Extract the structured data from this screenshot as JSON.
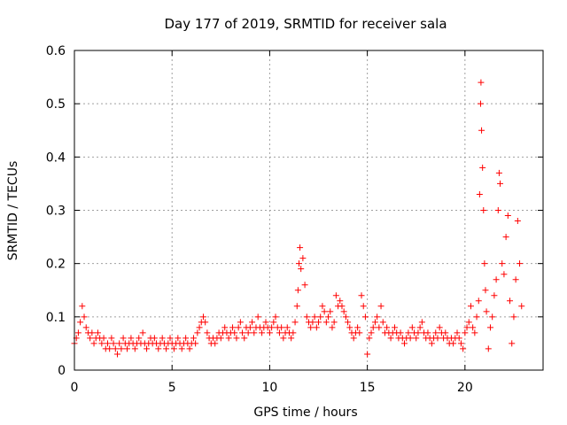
{
  "chart_data": {
    "type": "scatter",
    "title": "Day 177 of 2019, SRMTID for receiver sala",
    "xlabel": "GPS time / hours",
    "ylabel": "SRMTID / TECUs",
    "xlim": [
      0,
      24
    ],
    "ylim": [
      0,
      0.6
    ],
    "grid": true,
    "marker": "+",
    "marker_color": "#ff0000",
    "x_ticks": [
      0,
      5,
      10,
      15,
      20
    ],
    "x_tick_labels": [
      "0",
      "5",
      "10",
      "15",
      "20"
    ],
    "y_ticks": [
      0,
      0.1,
      0.2,
      0.3,
      0.4,
      0.5,
      0.6
    ],
    "y_tick_labels": [
      "0",
      "0.1",
      "0.2",
      "0.3",
      "0.4",
      "0.5",
      "0.6"
    ],
    "series": [
      {
        "name": "SRMTID",
        "points": [
          [
            0.0,
            0.05
          ],
          [
            0.1,
            0.06
          ],
          [
            0.2,
            0.07
          ],
          [
            0.3,
            0.09
          ],
          [
            0.4,
            0.12
          ],
          [
            0.5,
            0.1
          ],
          [
            0.6,
            0.08
          ],
          [
            0.7,
            0.07
          ],
          [
            0.8,
            0.06
          ],
          [
            0.9,
            0.07
          ],
          [
            1.0,
            0.05
          ],
          [
            1.1,
            0.06
          ],
          [
            1.2,
            0.07
          ],
          [
            1.3,
            0.06
          ],
          [
            1.4,
            0.05
          ],
          [
            1.5,
            0.06
          ],
          [
            1.6,
            0.04
          ],
          [
            1.7,
            0.05
          ],
          [
            1.8,
            0.04
          ],
          [
            1.9,
            0.06
          ],
          [
            2.0,
            0.05
          ],
          [
            2.1,
            0.04
          ],
          [
            2.2,
            0.03
          ],
          [
            2.3,
            0.05
          ],
          [
            2.4,
            0.04
          ],
          [
            2.5,
            0.06
          ],
          [
            2.6,
            0.05
          ],
          [
            2.7,
            0.04
          ],
          [
            2.8,
            0.05
          ],
          [
            2.9,
            0.06
          ],
          [
            3.0,
            0.05
          ],
          [
            3.1,
            0.04
          ],
          [
            3.2,
            0.05
          ],
          [
            3.3,
            0.06
          ],
          [
            3.4,
            0.05
          ],
          [
            3.5,
            0.07
          ],
          [
            3.6,
            0.05
          ],
          [
            3.7,
            0.04
          ],
          [
            3.8,
            0.05
          ],
          [
            3.9,
            0.06
          ],
          [
            4.0,
            0.05
          ],
          [
            4.1,
            0.06
          ],
          [
            4.2,
            0.05
          ],
          [
            4.3,
            0.04
          ],
          [
            4.4,
            0.05
          ],
          [
            4.5,
            0.06
          ],
          [
            4.6,
            0.05
          ],
          [
            4.7,
            0.04
          ],
          [
            4.8,
            0.05
          ],
          [
            4.9,
            0.06
          ],
          [
            5.0,
            0.05
          ],
          [
            5.1,
            0.04
          ],
          [
            5.2,
            0.05
          ],
          [
            5.3,
            0.06
          ],
          [
            5.4,
            0.05
          ],
          [
            5.5,
            0.04
          ],
          [
            5.6,
            0.05
          ],
          [
            5.7,
            0.06
          ],
          [
            5.8,
            0.05
          ],
          [
            5.9,
            0.04
          ],
          [
            6.0,
            0.05
          ],
          [
            6.1,
            0.06
          ],
          [
            6.2,
            0.05
          ],
          [
            6.3,
            0.07
          ],
          [
            6.4,
            0.08
          ],
          [
            6.5,
            0.09
          ],
          [
            6.6,
            0.1
          ],
          [
            6.7,
            0.09
          ],
          [
            6.8,
            0.07
          ],
          [
            6.9,
            0.06
          ],
          [
            7.0,
            0.05
          ],
          [
            7.1,
            0.06
          ],
          [
            7.2,
            0.05
          ],
          [
            7.3,
            0.06
          ],
          [
            7.4,
            0.07
          ],
          [
            7.5,
            0.06
          ],
          [
            7.6,
            0.07
          ],
          [
            7.7,
            0.08
          ],
          [
            7.8,
            0.07
          ],
          [
            7.9,
            0.06
          ],
          [
            8.0,
            0.07
          ],
          [
            8.1,
            0.08
          ],
          [
            8.2,
            0.07
          ],
          [
            8.3,
            0.06
          ],
          [
            8.4,
            0.08
          ],
          [
            8.5,
            0.09
          ],
          [
            8.6,
            0.07
          ],
          [
            8.7,
            0.06
          ],
          [
            8.8,
            0.08
          ],
          [
            8.9,
            0.07
          ],
          [
            9.0,
            0.08
          ],
          [
            9.1,
            0.09
          ],
          [
            9.2,
            0.07
          ],
          [
            9.3,
            0.08
          ],
          [
            9.4,
            0.1
          ],
          [
            9.5,
            0.08
          ],
          [
            9.6,
            0.07
          ],
          [
            9.7,
            0.08
          ],
          [
            9.8,
            0.09
          ],
          [
            9.9,
            0.08
          ],
          [
            10.0,
            0.07
          ],
          [
            10.1,
            0.08
          ],
          [
            10.2,
            0.09
          ],
          [
            10.3,
            0.1
          ],
          [
            10.4,
            0.08
          ],
          [
            10.5,
            0.07
          ],
          [
            10.6,
            0.08
          ],
          [
            10.7,
            0.06
          ],
          [
            10.8,
            0.07
          ],
          [
            10.9,
            0.08
          ],
          [
            11.0,
            0.07
          ],
          [
            11.1,
            0.06
          ],
          [
            11.2,
            0.07
          ],
          [
            11.3,
            0.09
          ],
          [
            11.4,
            0.12
          ],
          [
            11.45,
            0.15
          ],
          [
            11.5,
            0.2
          ],
          [
            11.55,
            0.23
          ],
          [
            11.6,
            0.19
          ],
          [
            11.7,
            0.21
          ],
          [
            11.8,
            0.16
          ],
          [
            11.9,
            0.1
          ],
          [
            12.0,
            0.09
          ],
          [
            12.1,
            0.08
          ],
          [
            12.2,
            0.09
          ],
          [
            12.3,
            0.1
          ],
          [
            12.4,
            0.08
          ],
          [
            12.5,
            0.09
          ],
          [
            12.6,
            0.1
          ],
          [
            12.7,
            0.12
          ],
          [
            12.8,
            0.11
          ],
          [
            12.9,
            0.09
          ],
          [
            13.0,
            0.1
          ],
          [
            13.1,
            0.11
          ],
          [
            13.2,
            0.08
          ],
          [
            13.3,
            0.09
          ],
          [
            13.4,
            0.14
          ],
          [
            13.5,
            0.12
          ],
          [
            13.6,
            0.13
          ],
          [
            13.7,
            0.12
          ],
          [
            13.8,
            0.11
          ],
          [
            13.9,
            0.1
          ],
          [
            14.0,
            0.09
          ],
          [
            14.1,
            0.08
          ],
          [
            14.2,
            0.07
          ],
          [
            14.3,
            0.06
          ],
          [
            14.4,
            0.07
          ],
          [
            14.5,
            0.08
          ],
          [
            14.6,
            0.07
          ],
          [
            14.7,
            0.14
          ],
          [
            14.8,
            0.12
          ],
          [
            14.9,
            0.1
          ],
          [
            15.0,
            0.03
          ],
          [
            15.1,
            0.06
          ],
          [
            15.2,
            0.07
          ],
          [
            15.3,
            0.08
          ],
          [
            15.4,
            0.09
          ],
          [
            15.5,
            0.1
          ],
          [
            15.6,
            0.08
          ],
          [
            15.7,
            0.12
          ],
          [
            15.8,
            0.09
          ],
          [
            15.9,
            0.07
          ],
          [
            16.0,
            0.08
          ],
          [
            16.1,
            0.07
          ],
          [
            16.2,
            0.06
          ],
          [
            16.3,
            0.07
          ],
          [
            16.4,
            0.08
          ],
          [
            16.5,
            0.07
          ],
          [
            16.6,
            0.06
          ],
          [
            16.7,
            0.07
          ],
          [
            16.8,
            0.06
          ],
          [
            16.9,
            0.05
          ],
          [
            17.0,
            0.06
          ],
          [
            17.1,
            0.07
          ],
          [
            17.2,
            0.06
          ],
          [
            17.3,
            0.08
          ],
          [
            17.4,
            0.07
          ],
          [
            17.5,
            0.06
          ],
          [
            17.6,
            0.07
          ],
          [
            17.7,
            0.08
          ],
          [
            17.8,
            0.09
          ],
          [
            17.9,
            0.07
          ],
          [
            18.0,
            0.06
          ],
          [
            18.1,
            0.07
          ],
          [
            18.2,
            0.06
          ],
          [
            18.3,
            0.05
          ],
          [
            18.4,
            0.06
          ],
          [
            18.5,
            0.07
          ],
          [
            18.6,
            0.06
          ],
          [
            18.7,
            0.08
          ],
          [
            18.8,
            0.07
          ],
          [
            18.9,
            0.06
          ],
          [
            19.0,
            0.07
          ],
          [
            19.1,
            0.06
          ],
          [
            19.2,
            0.05
          ],
          [
            19.3,
            0.06
          ],
          [
            19.4,
            0.05
          ],
          [
            19.5,
            0.06
          ],
          [
            19.6,
            0.07
          ],
          [
            19.7,
            0.06
          ],
          [
            19.8,
            0.05
          ],
          [
            19.9,
            0.04
          ],
          [
            20.0,
            0.07
          ],
          [
            20.1,
            0.08
          ],
          [
            20.2,
            0.09
          ],
          [
            20.3,
            0.12
          ],
          [
            20.4,
            0.08
          ],
          [
            20.5,
            0.07
          ],
          [
            20.6,
            0.1
          ],
          [
            20.7,
            0.13
          ],
          [
            20.75,
            0.33
          ],
          [
            20.8,
            0.5
          ],
          [
            20.82,
            0.54
          ],
          [
            20.85,
            0.45
          ],
          [
            20.9,
            0.38
          ],
          [
            20.95,
            0.3
          ],
          [
            21.0,
            0.2
          ],
          [
            21.05,
            0.15
          ],
          [
            21.1,
            0.11
          ],
          [
            21.2,
            0.04
          ],
          [
            21.3,
            0.08
          ],
          [
            21.4,
            0.1
          ],
          [
            21.5,
            0.14
          ],
          [
            21.6,
            0.17
          ],
          [
            21.7,
            0.3
          ],
          [
            21.75,
            0.37
          ],
          [
            21.8,
            0.35
          ],
          [
            21.9,
            0.2
          ],
          [
            22.0,
            0.18
          ],
          [
            22.1,
            0.25
          ],
          [
            22.2,
            0.29
          ],
          [
            22.3,
            0.13
          ],
          [
            22.4,
            0.05
          ],
          [
            22.5,
            0.1
          ],
          [
            22.6,
            0.17
          ],
          [
            22.7,
            0.28
          ],
          [
            22.8,
            0.2
          ],
          [
            22.9,
            0.12
          ]
        ]
      }
    ]
  }
}
